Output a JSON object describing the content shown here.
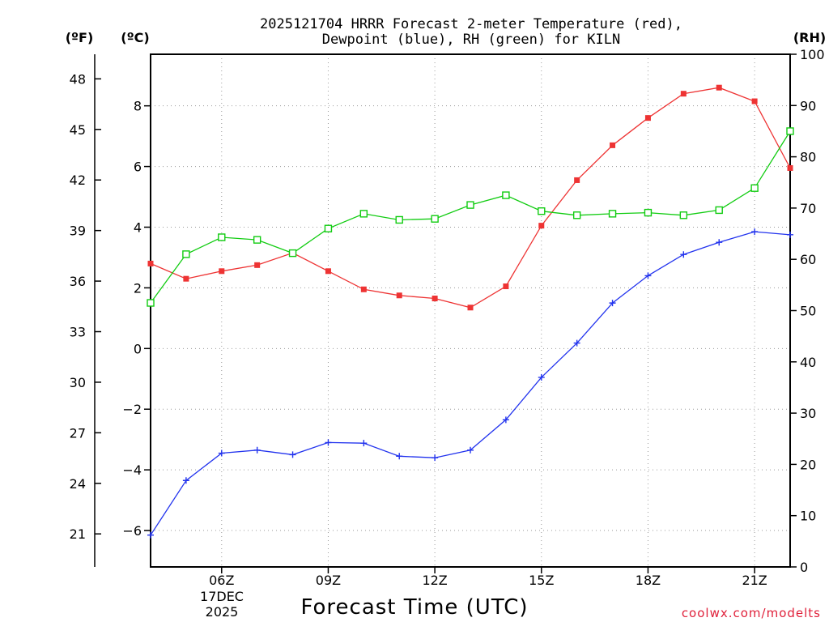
{
  "chart_data": {
    "type": "line",
    "title_line1": "2025121704 HRRR Forecast 2-meter Temperature (red),",
    "title_line2": "Dewpoint (blue), RH (green) for KILN",
    "xlabel": "Forecast Time (UTC)",
    "credit": "coolwx.com/modelts",
    "units": {
      "f": "(ºF)",
      "c": "(ºC)",
      "rh": "(RH)"
    },
    "date_label": {
      "day": "17DEC",
      "year": "2025"
    },
    "x_hours": [
      4,
      5,
      6,
      7,
      8,
      9,
      10,
      11,
      12,
      13,
      14,
      15,
      16,
      17,
      18,
      19,
      20,
      21,
      22
    ],
    "x_ticks": [
      {
        "hour": 6,
        "label": "06Z"
      },
      {
        "hour": 9,
        "label": "09Z"
      },
      {
        "hour": 12,
        "label": "12Z"
      },
      {
        "hour": 15,
        "label": "15Z"
      },
      {
        "hour": 18,
        "label": "18Z"
      },
      {
        "hour": 21,
        "label": "21Z"
      }
    ],
    "xlim": [
      4,
      22
    ],
    "celsius_axis": {
      "ylim": [
        -7.2,
        9.7
      ],
      "ticks": [
        -6,
        -4,
        -2,
        0,
        2,
        4,
        6,
        8
      ]
    },
    "fahrenheit_axis": {
      "ticks": [
        21,
        24,
        27,
        30,
        33,
        36,
        39,
        42,
        45,
        48
      ]
    },
    "rh_axis": {
      "ylim": [
        0,
        100
      ],
      "ticks": [
        0,
        10,
        20,
        30,
        40,
        50,
        60,
        70,
        80,
        90,
        100
      ]
    },
    "series": [
      {
        "name": "Temperature",
        "units": "C",
        "color": "#ee3333",
        "marker": "filled-square",
        "values": [
          2.8,
          2.3,
          2.55,
          2.75,
          3.15,
          2.55,
          1.95,
          1.75,
          1.65,
          1.35,
          2.05,
          4.05,
          5.55,
          6.7,
          7.6,
          8.4,
          8.6,
          8.15,
          5.95
        ]
      },
      {
        "name": "Dewpoint",
        "units": "C",
        "color": "#2233ee",
        "marker": "plus",
        "values": [
          -6.15,
          -4.35,
          -3.45,
          -3.35,
          -3.5,
          -3.1,
          -3.12,
          -3.55,
          -3.6,
          -3.35,
          -2.35,
          -0.95,
          0.18,
          1.5,
          2.4,
          3.1,
          3.5,
          3.85,
          3.75
        ]
      },
      {
        "name": "RH",
        "units": "%",
        "color": "#11cc11",
        "marker": "open-square",
        "values": [
          51.5,
          61,
          64.3,
          63.8,
          61.2,
          66,
          68.9,
          67.7,
          67.9,
          70.6,
          72.5,
          69.4,
          68.6,
          68.9,
          69.1,
          68.6,
          69.6,
          73.9,
          85
        ]
      }
    ]
  }
}
